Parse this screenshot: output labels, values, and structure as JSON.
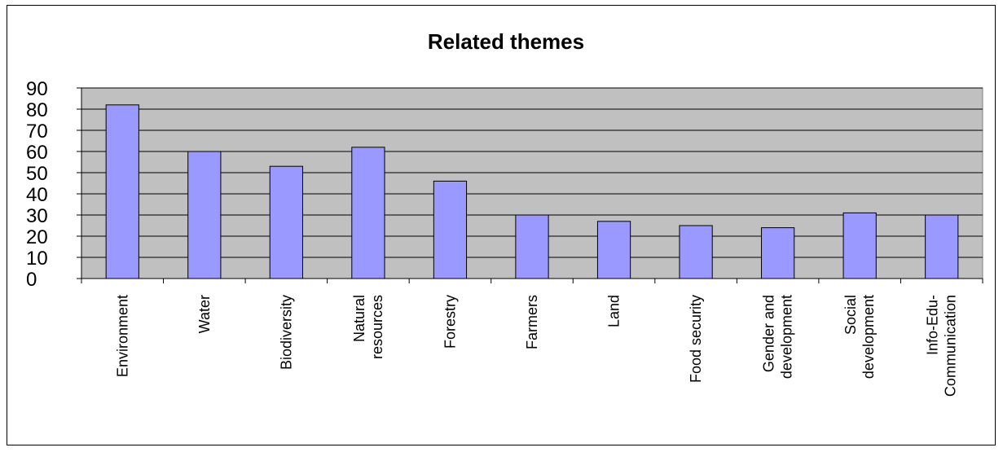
{
  "chart_data": {
    "type": "bar",
    "title": "Related themes",
    "xlabel": "",
    "ylabel": "",
    "categories": [
      [
        "Environment"
      ],
      [
        "Water"
      ],
      [
        "Biodiversity"
      ],
      [
        "Natural",
        "resources"
      ],
      [
        "Forestry"
      ],
      [
        "Farmers"
      ],
      [
        "Land"
      ],
      [
        "Food security"
      ],
      [
        "Gender and",
        "development"
      ],
      [
        "Social",
        "development"
      ],
      [
        "Info-Edu-",
        "Communication"
      ]
    ],
    "values": [
      82,
      60,
      53,
      62,
      46,
      30,
      27,
      25,
      24,
      31,
      30
    ],
    "ylim": [
      0,
      90
    ],
    "yticks": [
      "0",
      "10",
      "20",
      "30",
      "40",
      "50",
      "60",
      "70",
      "80",
      "90"
    ],
    "grid": true,
    "legend": "none",
    "colors": {
      "plot_background": "#c0c0c0",
      "bar_fill": "#9999ff",
      "bar_stroke": "#000000",
      "gridline": "#000000"
    }
  }
}
